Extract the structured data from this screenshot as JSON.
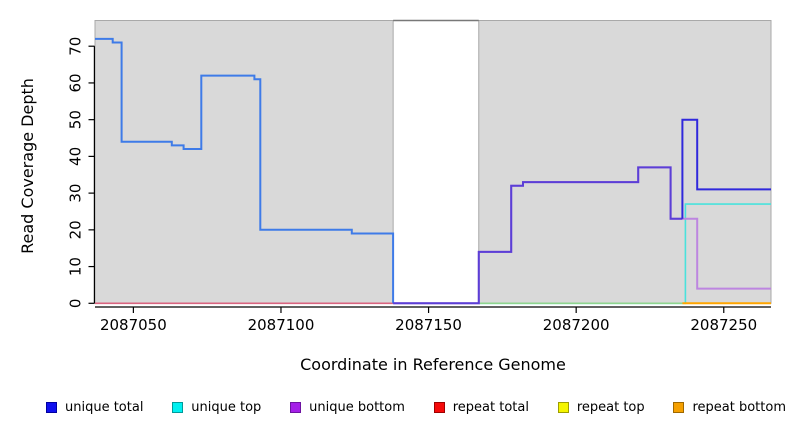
{
  "chart_data": {
    "type": "line",
    "step": true,
    "title": "",
    "xlabel": "Coordinate in Reference Genome",
    "ylabel": "Read Coverage Depth",
    "x_ticks": [
      2087050,
      2087100,
      2087150,
      2087200,
      2087250
    ],
    "y_ticks": [
      0,
      10,
      20,
      30,
      40,
      50,
      60,
      70
    ],
    "xlim": [
      2087037,
      2087266
    ],
    "ylim": [
      0,
      77
    ],
    "grid": false,
    "legend_position": "bottom",
    "panel_fill": "#d9d9d9",
    "panel_border": "#a9a9a9",
    "background_regions": [
      {
        "from": 2087037,
        "to": 2087138,
        "fill": "#d9d9d9",
        "border": "#a9a9a9"
      },
      {
        "from": 2087167,
        "to": 2087266,
        "fill": "#d9d9d9",
        "border": "#a9a9a9"
      }
    ],
    "gap_top_line": {
      "from": 2087138,
      "to": 2087167,
      "color": "#787878"
    },
    "series": [
      {
        "name": "repeat total",
        "legend_color": "#f50a0a",
        "line_width": 1.6,
        "segments": [
          {
            "color": "#d96480",
            "steps": [
              [
                2087037,
                0
              ]
            ],
            "end": 2087138
          }
        ]
      },
      {
        "name": "unique top",
        "legend_color": "#00f0f0",
        "line_width": 1.6,
        "segments": [
          {
            "color": "#49e2dc",
            "steps": [
              [
                2087167,
                0
              ],
              [
                2087237,
                27
              ]
            ],
            "end": 2087266
          }
        ]
      },
      {
        "name": "repeat top",
        "legend_color": "#f5f500",
        "line_width": 1.6,
        "segments": [
          {
            "color": "#8fd58f",
            "steps": [
              [
                2087167,
                0
              ]
            ],
            "end": 2087236
          }
        ]
      },
      {
        "name": "unique bottom",
        "legend_color": "#a51fe8",
        "line_width": 2,
        "segments": [
          {
            "color": "#bd85e0",
            "steps": [
              [
                2087138,
                0
              ],
              [
                2087167,
                14
              ],
              [
                2087178,
                32
              ],
              [
                2087182,
                33
              ],
              [
                2087221,
                37
              ],
              [
                2087232,
                23
              ],
              [
                2087241,
                4
              ]
            ],
            "end": 2087266
          }
        ]
      },
      {
        "name": "unique total",
        "legend_color": "#1010ee",
        "line_width": 2,
        "segments": [
          {
            "color": "#3e7be8",
            "steps": [
              [
                2087037,
                72
              ],
              [
                2087043,
                71
              ],
              [
                2087046,
                44
              ],
              [
                2087063,
                43
              ],
              [
                2087067,
                42
              ],
              [
                2087073,
                62
              ],
              [
                2087091,
                61
              ],
              [
                2087093,
                20
              ],
              [
                2087124,
                19
              ],
              [
                2087138,
                0
              ]
            ],
            "end": 2087138
          },
          {
            "color": "#5b3fd6",
            "steps": [
              [
                2087138,
                0
              ],
              [
                2087167,
                14
              ],
              [
                2087178,
                32
              ],
              [
                2087182,
                33
              ],
              [
                2087221,
                37
              ],
              [
                2087232,
                23
              ]
            ],
            "end": 2087236
          },
          {
            "color": "#3028dc",
            "steps": [
              [
                2087236,
                23
              ],
              [
                2087236,
                50
              ],
              [
                2087241,
                31
              ]
            ],
            "end": 2087266
          }
        ]
      },
      {
        "name": "repeat bottom",
        "legend_color": "#ffa500",
        "line_width": 2,
        "segments": [
          {
            "color": "#ffa500",
            "steps": [
              [
                2087236,
                0
              ]
            ],
            "end": 2087266
          }
        ]
      }
    ]
  },
  "legend": {
    "items": [
      {
        "key": "unique-total",
        "label": "unique total",
        "fill": "#1010ee",
        "border": "#0000a0"
      },
      {
        "key": "unique-top",
        "label": "unique top",
        "fill": "#00f0f0",
        "border": "#009a9a"
      },
      {
        "key": "unique-bottom",
        "label": "unique bottom",
        "fill": "#a51fe8",
        "border": "#6d13a0"
      },
      {
        "key": "repeat-total",
        "label": "repeat total",
        "fill": "#f50a0a",
        "border": "#9e0000"
      },
      {
        "key": "repeat-top",
        "label": "repeat top",
        "fill": "#f5f500",
        "border": "#9e9e00"
      },
      {
        "key": "repeat-bottom",
        "label": "repeat bottom",
        "fill": "#f5a000",
        "border": "#9e6800"
      }
    ]
  }
}
